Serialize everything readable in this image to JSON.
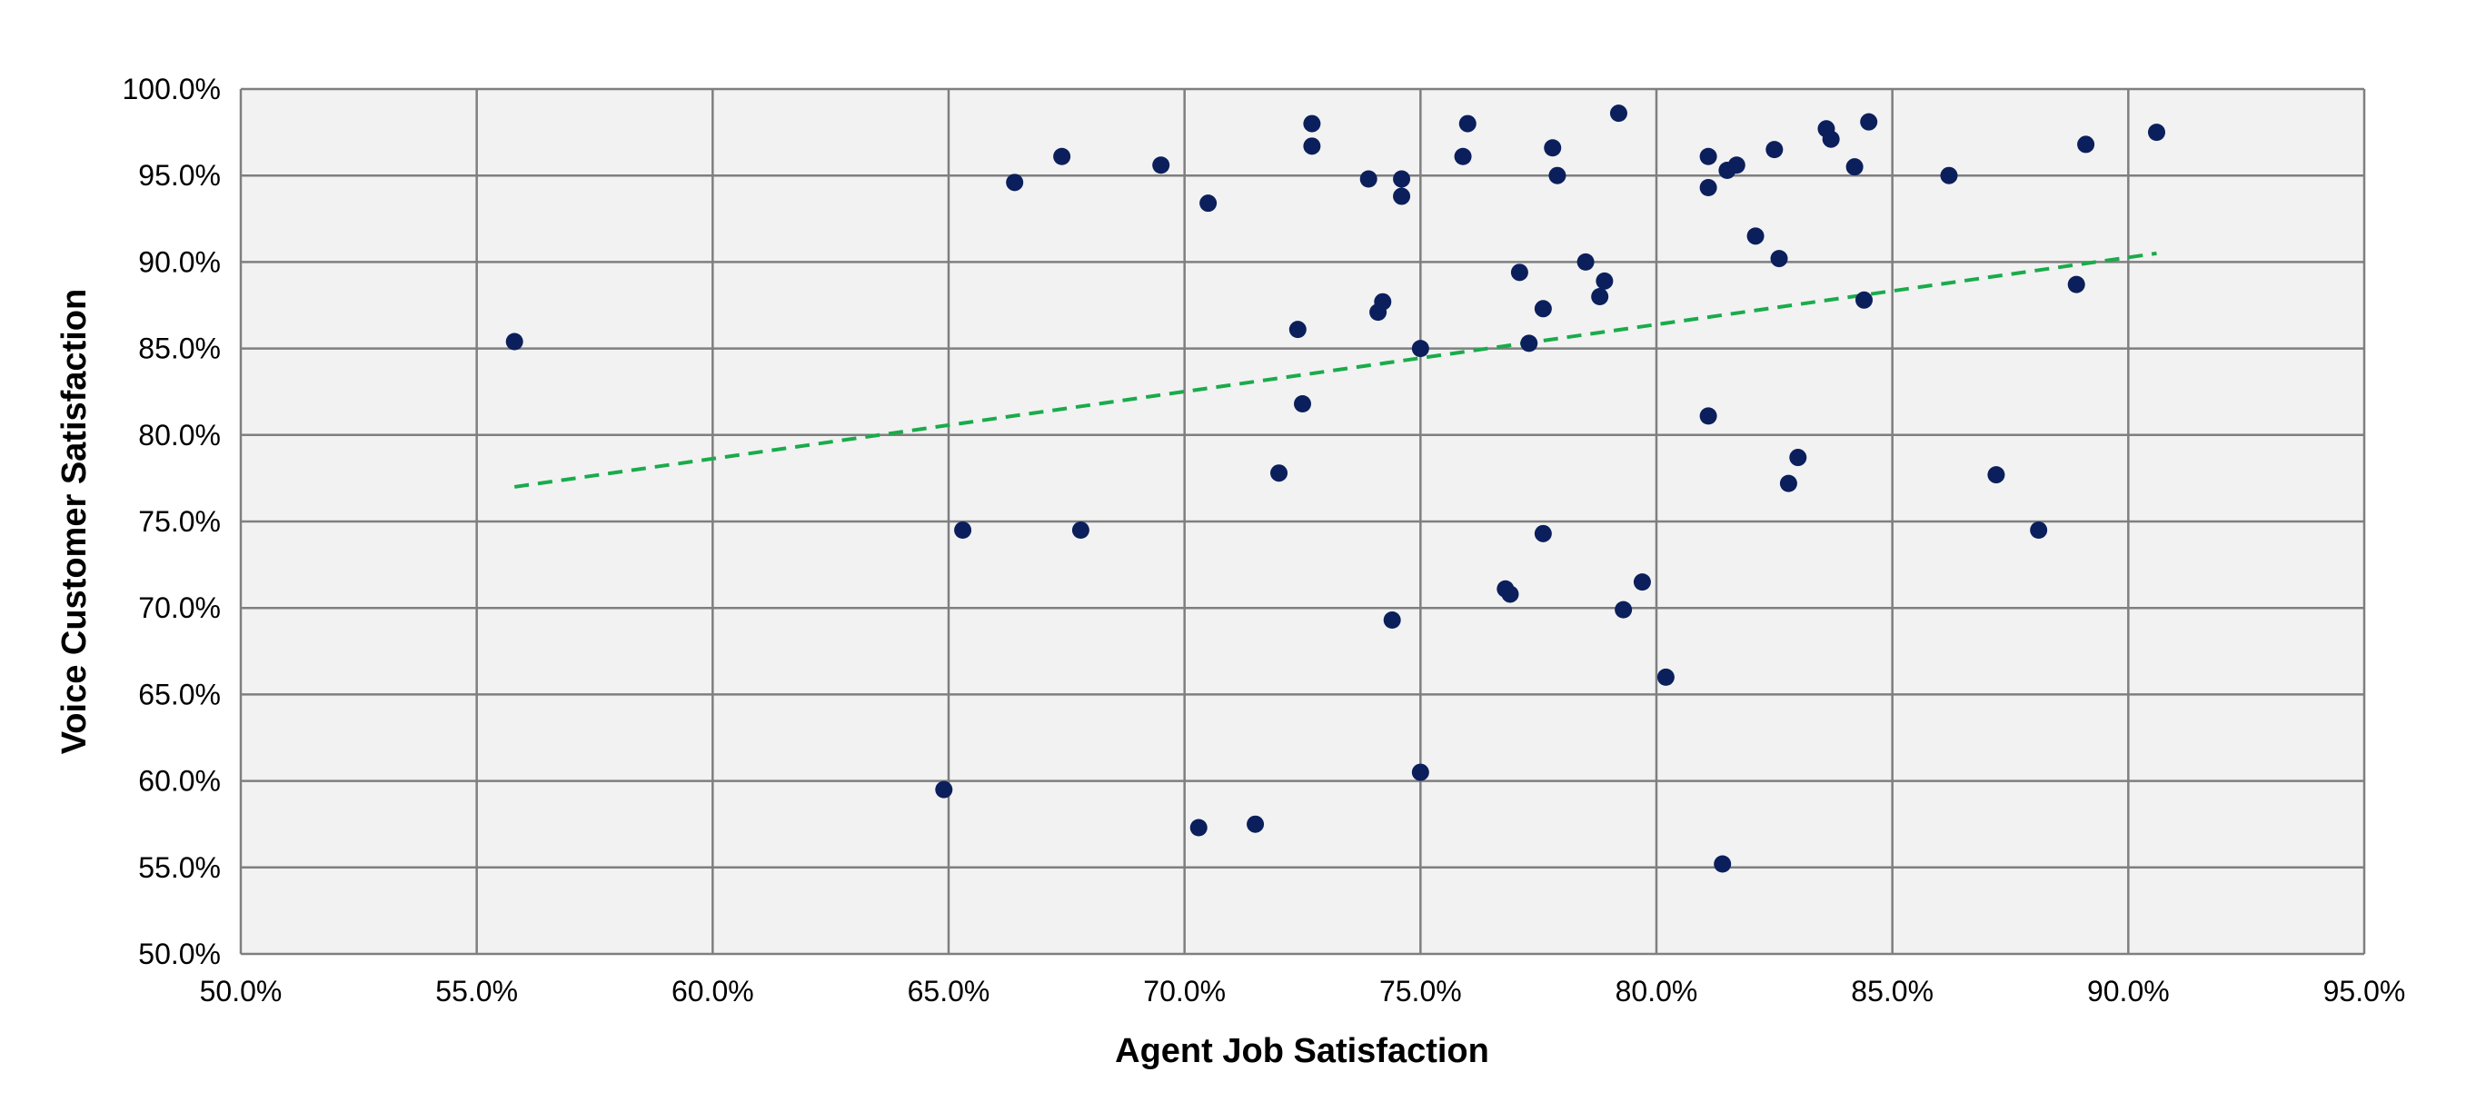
{
  "chart_data": {
    "type": "scatter",
    "xlabel": "Agent Job Satisfaction",
    "ylabel": "Voice Customer Satisfaction",
    "xlim": [
      0.5,
      0.95
    ],
    "ylim": [
      0.5,
      1.0
    ],
    "x_ticks": [
      "50.0%",
      "55.0%",
      "60.0%",
      "65.0%",
      "70.0%",
      "75.0%",
      "80.0%",
      "85.0%",
      "90.0%",
      "95.0%"
    ],
    "y_ticks": [
      "50.0%",
      "55.0%",
      "60.0%",
      "65.0%",
      "70.0%",
      "75.0%",
      "80.0%",
      "85.0%",
      "90.0%",
      "95.0%",
      "100.0%"
    ],
    "grid": true,
    "plot_background": "#f2f2f2",
    "grid_color": "#7f7f7f",
    "point_color": "#0b1f5c",
    "trendline": {
      "style": "dashed",
      "color": "#1aab4b",
      "x": [
        0.558,
        0.906
      ],
      "y": [
        0.77,
        0.905
      ]
    },
    "series": [
      {
        "points": [
          [
            0.558,
            0.854
          ],
          [
            0.649,
            0.595
          ],
          [
            0.653,
            0.745
          ],
          [
            0.664,
            0.946
          ],
          [
            0.674,
            0.961
          ],
          [
            0.678,
            0.745
          ],
          [
            0.695,
            0.956
          ],
          [
            0.703,
            0.573
          ],
          [
            0.705,
            0.934
          ],
          [
            0.715,
            0.575
          ],
          [
            0.72,
            0.778
          ],
          [
            0.724,
            0.861
          ],
          [
            0.725,
            0.818
          ],
          [
            0.727,
            0.98
          ],
          [
            0.727,
            0.967
          ],
          [
            0.739,
            0.948
          ],
          [
            0.741,
            0.871
          ],
          [
            0.742,
            0.877
          ],
          [
            0.744,
            0.693
          ],
          [
            0.746,
            0.948
          ],
          [
            0.746,
            0.938
          ],
          [
            0.75,
            0.85
          ],
          [
            0.75,
            0.605
          ],
          [
            0.759,
            0.961
          ],
          [
            0.76,
            0.98
          ],
          [
            0.768,
            0.711
          ],
          [
            0.769,
            0.708
          ],
          [
            0.771,
            0.894
          ],
          [
            0.773,
            0.853
          ],
          [
            0.776,
            0.873
          ],
          [
            0.776,
            0.743
          ],
          [
            0.778,
            0.966
          ],
          [
            0.779,
            0.95
          ],
          [
            0.785,
            0.9
          ],
          [
            0.788,
            0.88
          ],
          [
            0.789,
            0.889
          ],
          [
            0.792,
            0.986
          ],
          [
            0.793,
            0.699
          ],
          [
            0.797,
            0.715
          ],
          [
            0.802,
            0.66
          ],
          [
            0.811,
            0.961
          ],
          [
            0.811,
            0.943
          ],
          [
            0.811,
            0.811
          ],
          [
            0.814,
            0.552
          ],
          [
            0.815,
            0.953
          ],
          [
            0.817,
            0.956
          ],
          [
            0.821,
            0.915
          ],
          [
            0.825,
            0.965
          ],
          [
            0.826,
            0.902
          ],
          [
            0.828,
            0.772
          ],
          [
            0.83,
            0.787
          ],
          [
            0.836,
            0.977
          ],
          [
            0.837,
            0.971
          ],
          [
            0.842,
            0.955
          ],
          [
            0.844,
            0.878
          ],
          [
            0.845,
            0.981
          ],
          [
            0.862,
            0.95
          ],
          [
            0.872,
            0.777
          ],
          [
            0.881,
            0.745
          ],
          [
            0.889,
            0.887
          ],
          [
            0.891,
            0.968
          ],
          [
            0.906,
            0.975
          ]
        ]
      }
    ]
  }
}
